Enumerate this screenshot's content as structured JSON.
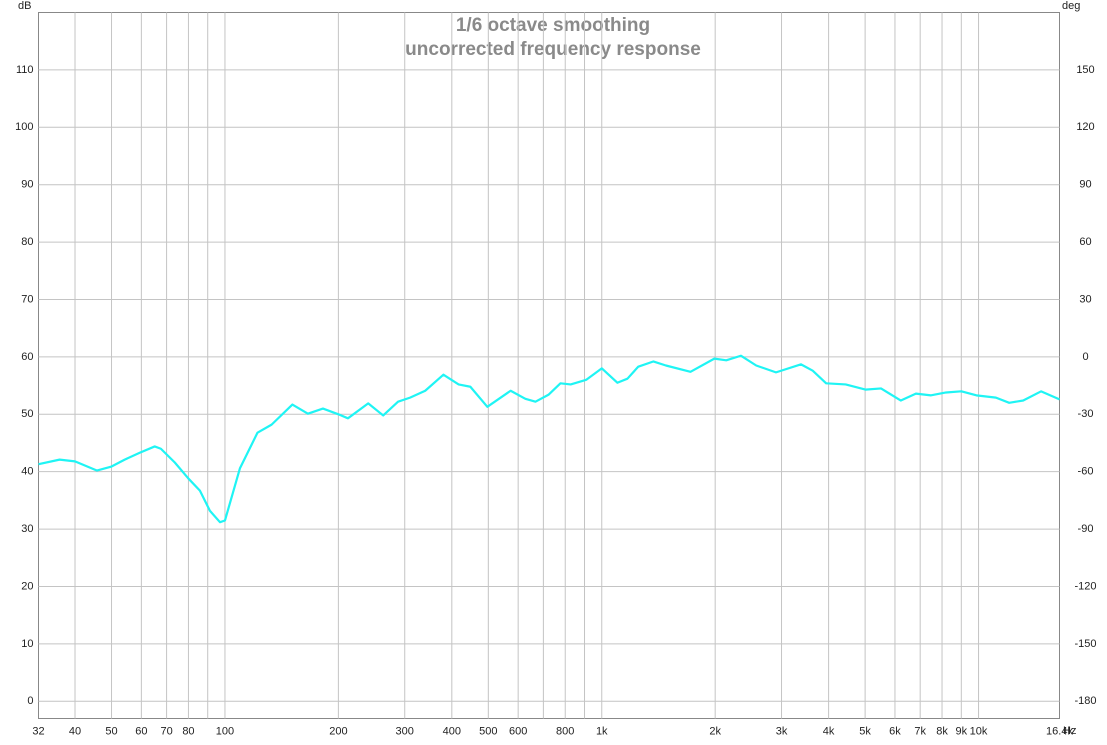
{
  "chart_data": {
    "type": "line",
    "title": "1/6 octave smoothing",
    "subtitle": "uncorrected frequency response",
    "ylabel": "dB",
    "y2label": "deg",
    "xlabel": "Hz",
    "xscale": "log",
    "grid": true,
    "xlim": [
      32,
      16400
    ],
    "ylim": [
      -3,
      120
    ],
    "y2lim": [
      -189,
      180
    ],
    "yticks": [
      0,
      10,
      20,
      30,
      40,
      50,
      60,
      70,
      80,
      90,
      100,
      110
    ],
    "y2ticks": [
      -180,
      -150,
      -120,
      -90,
      -60,
      -30,
      0,
      30,
      60,
      90,
      120,
      150
    ],
    "xticks": [
      32,
      40,
      50,
      60,
      70,
      80,
      {
        "value": 90,
        "label": null
      },
      100,
      200,
      300,
      400,
      500,
      600,
      {
        "value": 700,
        "label": null
      },
      800,
      {
        "value": 900,
        "label": null
      },
      {
        "value": 1000,
        "label": "1k"
      },
      {
        "value": 2000,
        "label": "2k"
      },
      {
        "value": 3000,
        "label": "3k"
      },
      {
        "value": 4000,
        "label": "4k"
      },
      {
        "value": 5000,
        "label": "5k"
      },
      {
        "value": 6000,
        "label": "6k"
      },
      {
        "value": 7000,
        "label": "7k"
      },
      {
        "value": 8000,
        "label": "8k"
      },
      {
        "value": 9000,
        "label": "9k"
      },
      {
        "value": 10000,
        "label": "10k"
      },
      {
        "value": 16400,
        "label": "16.4k"
      }
    ],
    "series": [
      {
        "name": "uncorrected frequency response",
        "color": "#1ff4f4",
        "x": [
          32,
          36.4,
          40,
          45.7,
          50,
          54.2,
          59.4,
          65.1,
          67.6,
          73.6,
          80,
          85.8,
          91.2,
          97,
          100,
          109.6,
          122,
          133,
          151,
          166,
          182,
          200,
          212,
          240,
          263,
          288,
          310,
          340,
          380,
          417,
          448,
          497,
          573,
          627,
          667,
          722,
          777,
          827,
          909,
          1000,
          1100,
          1170,
          1250,
          1370,
          1480,
          1720,
          1990,
          2140,
          2340,
          2570,
          2900,
          3380,
          3630,
          3940,
          4440,
          5010,
          5510,
          6220,
          6820,
          7480,
          8200,
          9000,
          9870,
          11120,
          12060,
          13140,
          14660,
          16400
        ],
        "values": [
          41.3,
          42.1,
          41.8,
          40.2,
          40.9,
          42.1,
          43.3,
          44.4,
          44,
          41.6,
          38.8,
          36.7,
          33.2,
          31.2,
          31.5,
          40.6,
          46.8,
          48.2,
          51.7,
          50.1,
          51,
          50,
          49.3,
          51.9,
          49.8,
          52.2,
          52.9,
          54.1,
          56.9,
          55.2,
          54.8,
          51.3,
          54.1,
          52.7,
          52.2,
          53.4,
          55.4,
          55.2,
          56,
          58,
          55.5,
          56.2,
          58.3,
          59.2,
          58.5,
          57.4,
          59.7,
          59.4,
          60.2,
          58.5,
          57.3,
          58.7,
          57.6,
          55.4,
          55.2,
          54.3,
          54.5,
          52.4,
          53.6,
          53.3,
          53.8,
          54,
          53.3,
          52.9,
          52,
          52.4,
          54,
          52.6
        ]
      }
    ]
  }
}
